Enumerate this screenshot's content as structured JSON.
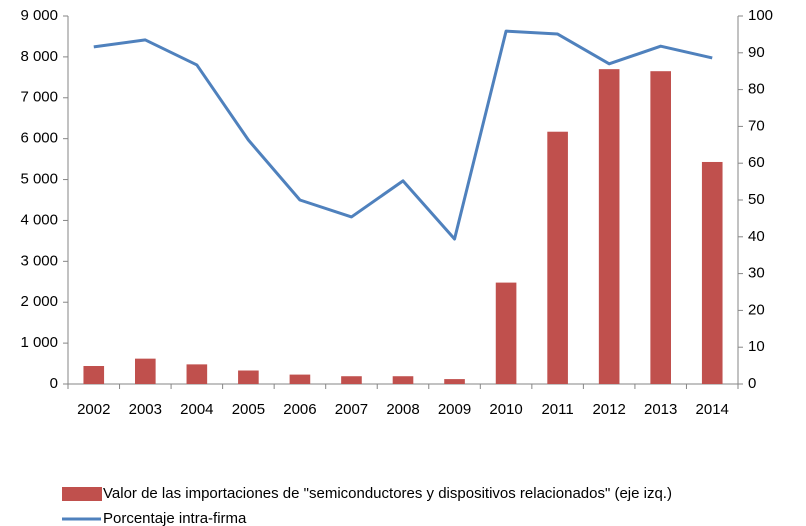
{
  "chart_data": {
    "type": "bar",
    "categories": [
      "2002",
      "2003",
      "2004",
      "2005",
      "2006",
      "2007",
      "2008",
      "2009",
      "2010",
      "2011",
      "2012",
      "2013",
      "2014"
    ],
    "series": [
      {
        "name": "Valor de las importaciones de \"semiconductores y dispositivos relacionados\" (eje izq.)",
        "type": "bar",
        "color": "#c0504d",
        "values": [
          440,
          620,
          480,
          330,
          230,
          190,
          190,
          120,
          2480,
          6170,
          7700,
          7650,
          5430
        ]
      },
      {
        "name": "Porcentaje intra-firma",
        "type": "line",
        "axis": "y2",
        "color": "#4f81bd",
        "values": [
          91.6,
          93.5,
          86.7,
          66.3,
          50,
          45.4,
          55.2,
          39.4,
          95.9,
          95.1,
          87,
          91.8,
          88.6
        ]
      }
    ],
    "ylim": [
      0,
      9000
    ],
    "yticks": [
      0,
      {
        "value": 1000,
        "label": "1 000"
      },
      {
        "value": 2000,
        "label": "2 000"
      },
      {
        "value": 3000,
        "label": "3 000"
      },
      {
        "value": 4000,
        "label": "4 000"
      },
      {
        "value": 5000,
        "label": "5 000"
      },
      {
        "value": 6000,
        "label": "6 000"
      },
      {
        "value": 7000,
        "label": "7 000"
      },
      {
        "value": 8000,
        "label": "8 000"
      },
      {
        "value": 9000,
        "label": "9 000"
      }
    ],
    "y2lim": [
      0,
      100
    ],
    "y2ticks": [
      0,
      10,
      20,
      30,
      40,
      50,
      60,
      70,
      80,
      90,
      100
    ],
    "grid": false,
    "legend": "bottom"
  }
}
